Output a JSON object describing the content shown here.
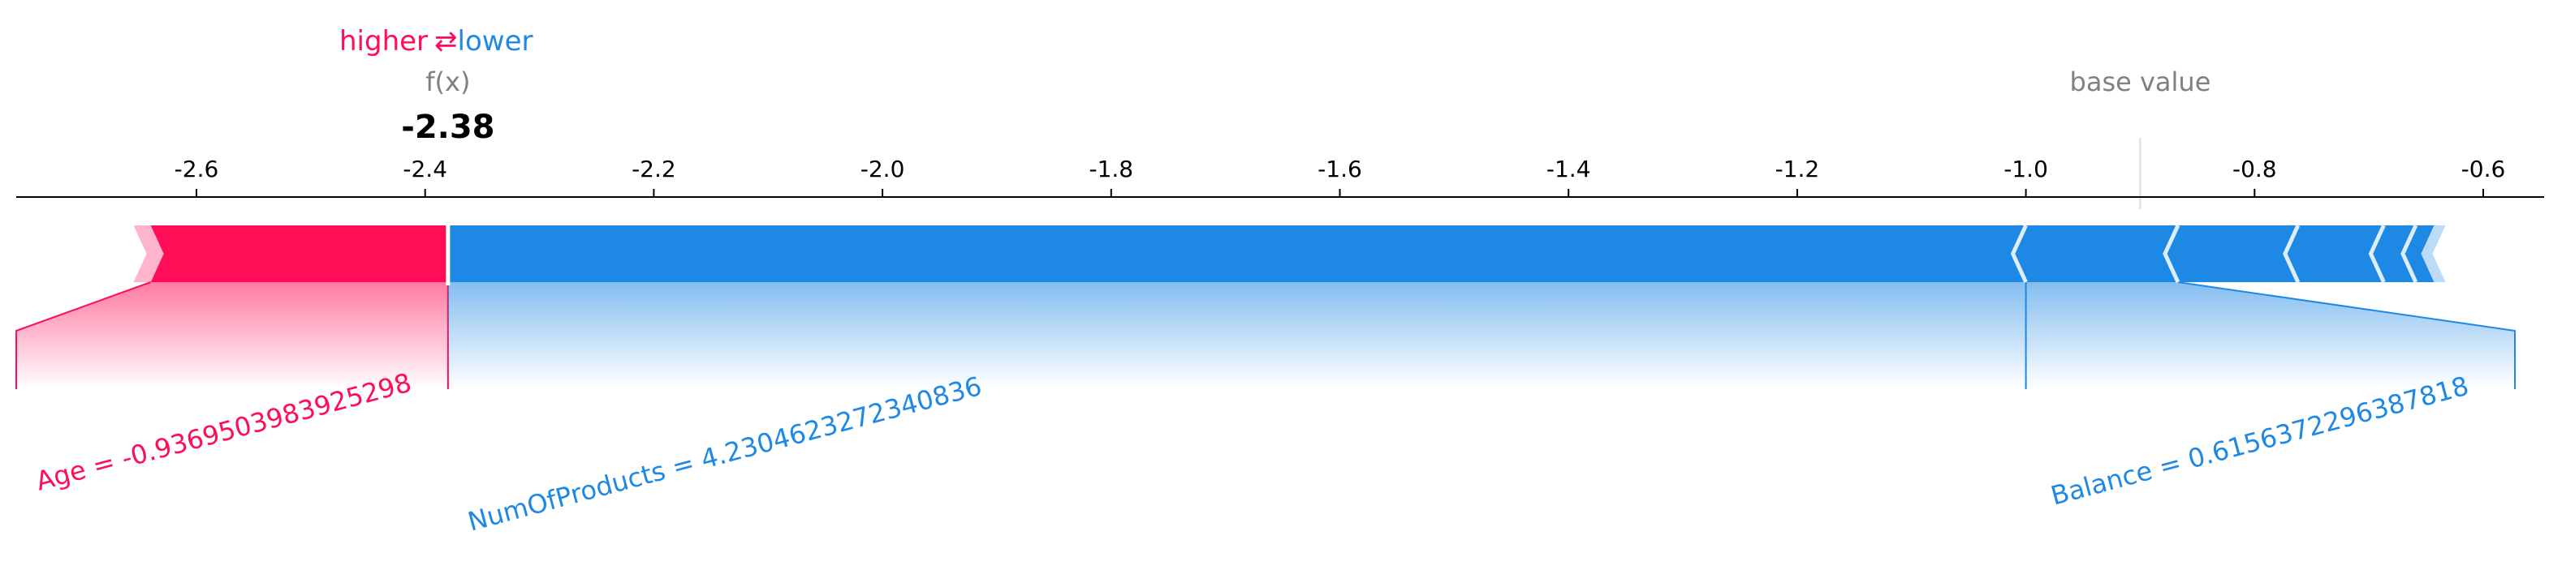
{
  "chart_data": {
    "type": "force",
    "xlim": [
      -2.7,
      -0.6
    ],
    "xticks": [
      "-2.6",
      "-2.4",
      "-2.2",
      "-2.0",
      "-1.8",
      "-1.6",
      "-1.4",
      "-1.2",
      "-1.0",
      "-0.8",
      "-0.6"
    ],
    "xtick_values": [
      -2.6,
      -2.4,
      -2.2,
      -2.0,
      -1.8,
      -1.6,
      -1.4,
      -1.2,
      -1.0,
      -0.8,
      -0.6
    ],
    "fx_label": "f(x)",
    "fx_value_text": "-2.38",
    "fx_value": -2.38,
    "base_value_label": "base value",
    "base_value": -0.9,
    "legend": {
      "higher": "higher",
      "arrows": "⇄",
      "lower": "lower"
    },
    "colors": {
      "positive": "#ff0d57",
      "negative": "#1e88e5",
      "axis": "#000000",
      "muted": "#808080"
    },
    "positive_segments": [
      {
        "feature": "Age = -0.9369503983925298",
        "start": -2.64,
        "end": -2.38,
        "labeled": true
      }
    ],
    "positive_tail_extent": -2.655,
    "negative_segments": [
      {
        "feature": "NumOfProducts = 4.2304623272340836",
        "start": -2.38,
        "end": -1.0,
        "labeled": true
      },
      {
        "feature": "",
        "start": -1.0,
        "end": -0.867,
        "labeled": false
      },
      {
        "feature": "",
        "start": -0.867,
        "end": -0.762,
        "labeled": false
      },
      {
        "feature": "",
        "start": -0.762,
        "end": -0.687,
        "labeled": false
      },
      {
        "feature": "",
        "start": -0.687,
        "end": -0.659,
        "labeled": false
      },
      {
        "feature": "",
        "start": -0.659,
        "end": -0.643,
        "labeled": false
      }
    ],
    "negative_tail_extent": -0.633,
    "feature_labels": [
      {
        "text": "Age = -0.9369503983925298",
        "sign": "positive"
      },
      {
        "text": "NumOfProducts = 4.2304623272340836",
        "sign": "negative"
      },
      {
        "text": "Balance = 0.6156372296387818",
        "sign": "negative"
      }
    ]
  }
}
